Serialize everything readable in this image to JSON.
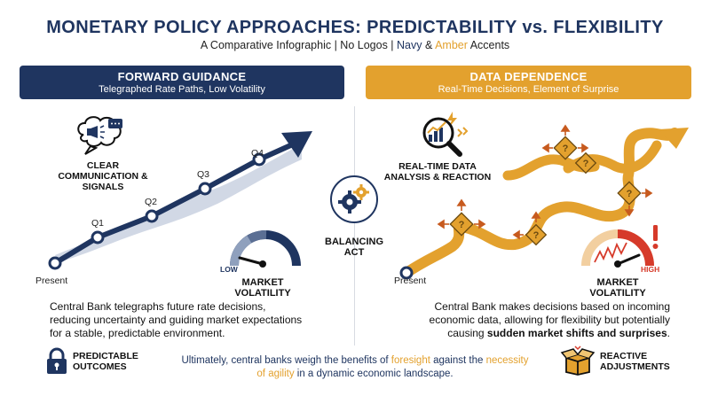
{
  "header": {
    "title": "MONETARY POLICY APPROACHES: PREDICTABILITY vs. FLEXIBILITY",
    "subtitle_prefix": "A Comparative Infographic | No Logos | ",
    "subtitle_navy": "Navy",
    "subtitle_amp": " & ",
    "subtitle_amber": "Amber",
    "subtitle_suffix": " Accents"
  },
  "left": {
    "banner_title": "FORWARD GUIDANCE",
    "banner_subtitle": "Telegraphed Rate Paths, Low Volatility",
    "comm_label": "CLEAR COMMUNICATION & SIGNALS",
    "points": [
      "Present",
      "Q1",
      "Q2",
      "Q3",
      "Q4"
    ],
    "gauge_low": "LOW",
    "volatility_label": "MARKET VOLATILITY",
    "description": "Central Bank telegraphs future rate decisions, reducing uncertainty and guiding market expectations for a stable, predictable environment.",
    "outcome_label": "PREDICTABLE OUTCOMES"
  },
  "center": {
    "balance_label": "BALANCING ACT"
  },
  "right": {
    "banner_title": "DATA DEPENDENCE",
    "banner_subtitle": "Real-Time Decisions, Element of Surprise",
    "analysis_label": "REAL-TIME DATA ANALYSIS & REACTION",
    "present_label": "Present",
    "gauge_high": "HIGH",
    "volatility_label": "MARKET VOLATILITY",
    "description_prefix": "Central Bank makes decisions based on incoming economic data, allowing for flexibility but potentially causing ",
    "description_bold": "sudden market shifts and surprises",
    "description_suffix": ".",
    "adjust_label": "REACTIVE ADJUSTMENTS"
  },
  "footer": {
    "part1": "Ultimately, central banks weigh the benefits of ",
    "foresight": "foresight",
    "part2": " against the ",
    "agility": "necessity of agility",
    "part3": " in a dynamic economic landscape."
  },
  "colors": {
    "navy": "#1f3560",
    "amber": "#e3a12e",
    "red": "#d63a2a",
    "divider": "#d7dbe2"
  }
}
